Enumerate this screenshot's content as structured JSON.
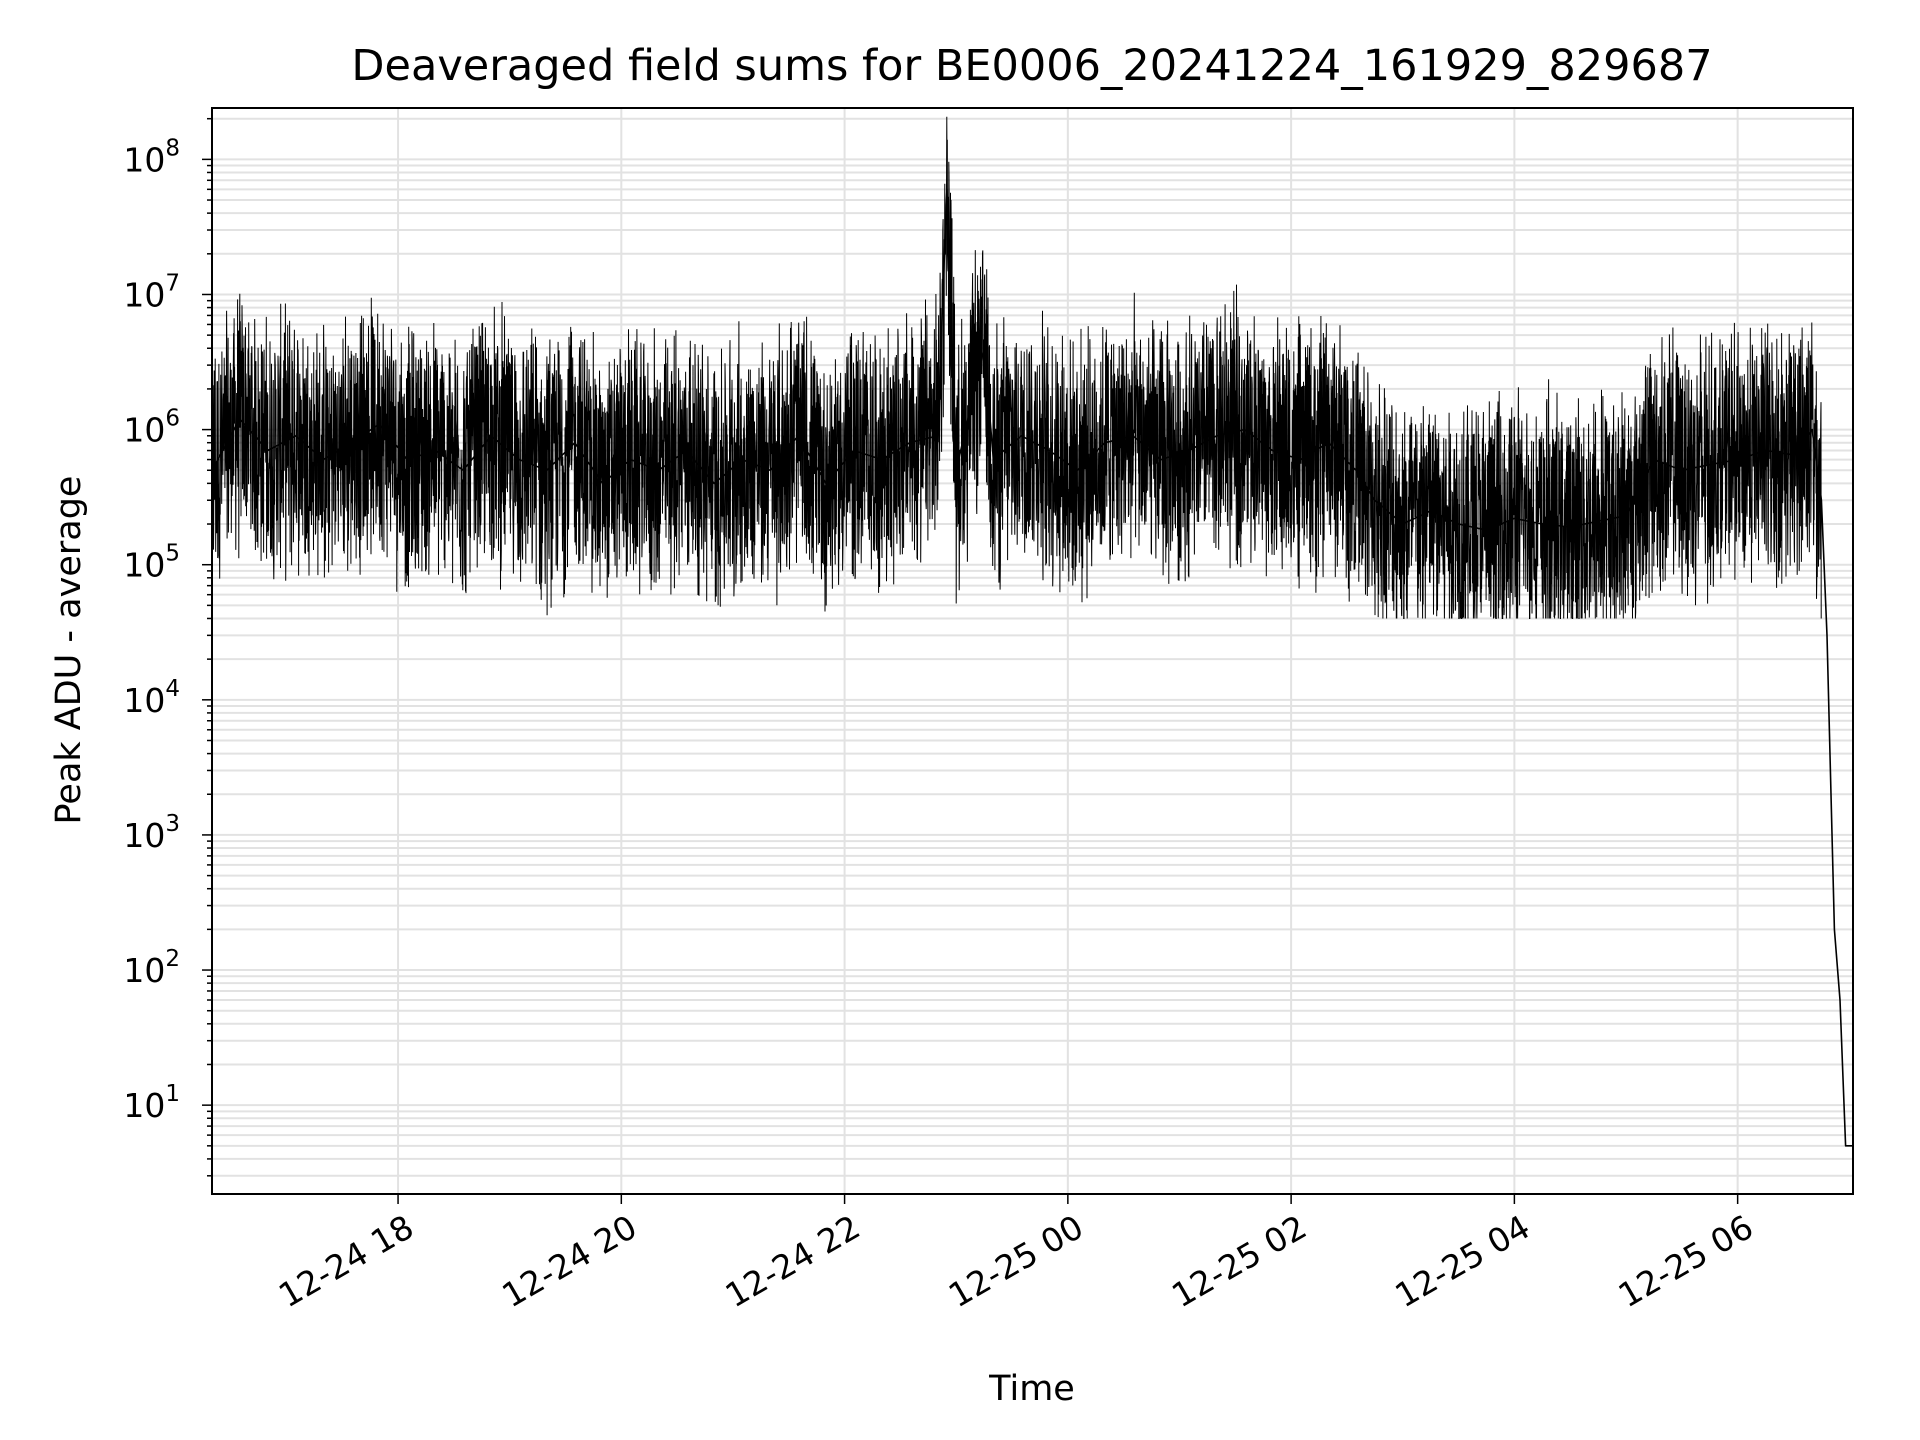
{
  "chart_data": {
    "type": "line",
    "title": "Deaveraged field sums for BE0006_20241224_161929_829687",
    "xlabel": "Time",
    "ylabel": "Peak ADU - average",
    "yscale": "log",
    "xlim": [
      "2024-12-24 16:20",
      "2024-12-25 07:02"
    ],
    "ylim": [
      2.2,
      240000000
    ],
    "grid": true,
    "line_color": "#000000",
    "grid_color": "#e2e2e2",
    "x_ticks": [
      {
        "value": "2024-12-24 18:00",
        "label": "12-24 18"
      },
      {
        "value": "2024-12-24 20:00",
        "label": "12-24 20"
      },
      {
        "value": "2024-12-24 22:00",
        "label": "12-24 22"
      },
      {
        "value": "2024-12-25 00:00",
        "label": "12-25 00"
      },
      {
        "value": "2024-12-25 02:00",
        "label": "12-25 02"
      },
      {
        "value": "2024-12-25 04:00",
        "label": "12-25 04"
      },
      {
        "value": "2024-12-25 06:00",
        "label": "12-25 06"
      }
    ],
    "y_ticks": [
      {
        "value": 10,
        "base": "10",
        "exp": "1"
      },
      {
        "value": 100,
        "base": "10",
        "exp": "2"
      },
      {
        "value": 1000,
        "base": "10",
        "exp": "3"
      },
      {
        "value": 10000,
        "base": "10",
        "exp": "4"
      },
      {
        "value": 100000,
        "base": "10",
        "exp": "5"
      },
      {
        "value": 1000000,
        "base": "10",
        "exp": "6"
      },
      {
        "value": 10000000,
        "base": "10",
        "exp": "7"
      },
      {
        "value": 100000000,
        "base": "10",
        "exp": "8"
      }
    ],
    "series": [
      {
        "x": [
          "2024-12-24 16:20",
          "2024-12-24 16:35",
          "2024-12-24 16:50",
          "2024-12-24 17:05",
          "2024-12-24 17:20",
          "2024-12-24 17:35",
          "2024-12-24 17:50",
          "2024-12-24 18:05",
          "2024-12-24 18:20",
          "2024-12-24 18:35",
          "2024-12-24 18:50",
          "2024-12-24 19:05",
          "2024-12-24 19:20",
          "2024-12-24 19:35",
          "2024-12-24 19:50",
          "2024-12-24 20:05",
          "2024-12-24 20:20",
          "2024-12-24 20:35",
          "2024-12-24 20:50",
          "2024-12-24 21:05",
          "2024-12-24 21:20",
          "2024-12-24 21:35",
          "2024-12-24 21:50",
          "2024-12-24 22:05",
          "2024-12-24 22:20",
          "2024-12-24 22:35",
          "2024-12-24 22:50",
          "2024-12-24 22:55",
          "2024-12-24 23:00",
          "2024-12-24 23:05",
          "2024-12-24 23:15",
          "2024-12-24 23:20",
          "2024-12-24 23:35",
          "2024-12-24 23:50",
          "2024-12-25 00:05",
          "2024-12-25 00:20",
          "2024-12-25 00:35",
          "2024-12-25 00:50",
          "2024-12-25 01:05",
          "2024-12-25 01:20",
          "2024-12-25 01:35",
          "2024-12-25 01:50",
          "2024-12-25 02:05",
          "2024-12-25 02:20",
          "2024-12-25 02:35",
          "2024-12-25 02:45",
          "2024-12-25 03:00",
          "2024-12-25 03:15",
          "2024-12-25 03:30",
          "2024-12-25 03:45",
          "2024-12-25 04:00",
          "2024-12-25 04:15",
          "2024-12-25 04:30",
          "2024-12-25 04:45",
          "2024-12-25 05:00",
          "2024-12-25 05:15",
          "2024-12-25 05:30",
          "2024-12-25 05:45",
          "2024-12-25 06:00",
          "2024-12-25 06:15",
          "2024-12-25 06:30",
          "2024-12-25 06:40",
          "2024-12-25 06:45",
          "2024-12-25 06:48",
          "2024-12-25 06:52",
          "2024-12-25 06:55",
          "2024-12-25 06:58",
          "2024-12-25 07:00",
          "2024-12-25 07:02"
        ],
        "y": [
          500000,
          1200000,
          700000,
          900000,
          600000,
          800000,
          1100000,
          600000,
          700000,
          500000,
          900000,
          600000,
          500000,
          800000,
          400000,
          600000,
          500000,
          700000,
          400000,
          600000,
          500000,
          900000,
          400000,
          700000,
          600000,
          800000,
          900000,
          60000000,
          500000,
          1000000,
          4000000,
          600000,
          900000,
          700000,
          500000,
          800000,
          900000,
          600000,
          700000,
          900000,
          1000000,
          700000,
          600000,
          800000,
          500000,
          300000,
          200000,
          250000,
          200000,
          180000,
          220000,
          200000,
          190000,
          210000,
          230000,
          600000,
          500000,
          550000,
          600000,
          700000,
          650000,
          1000000,
          300000,
          30000,
          200,
          60,
          5,
          5,
          5
        ]
      }
    ]
  }
}
